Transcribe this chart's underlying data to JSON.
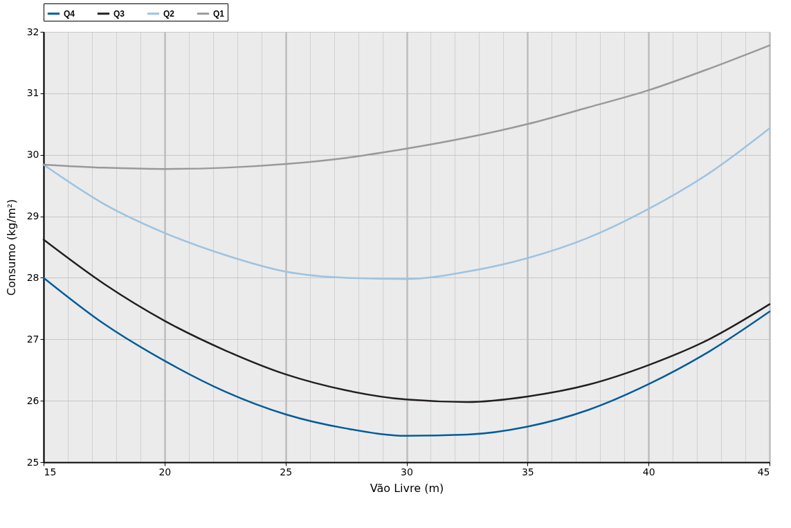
{
  "chart_data": {
    "type": "line",
    "xlabel": "Vão Livre (m)",
    "ylabel": "Consumo (kg/m²)",
    "x": [
      15,
      17.5,
      20,
      22.5,
      25,
      27.5,
      30,
      32.5,
      35,
      37.5,
      40,
      42.5,
      45
    ],
    "series": [
      {
        "name": "Q4",
        "color": "#005c9a",
        "values": [
          28.0,
          27.25,
          26.65,
          26.15,
          25.78,
          25.55,
          25.43,
          25.45,
          25.58,
          25.85,
          26.27,
          26.8,
          27.45
        ]
      },
      {
        "name": "Q3",
        "color": "#231f20",
        "values": [
          28.62,
          27.9,
          27.3,
          26.82,
          26.43,
          26.17,
          26.02,
          25.98,
          26.07,
          26.26,
          26.58,
          27.0,
          27.57
        ]
      },
      {
        "name": "Q2",
        "color": "#9dc3e0",
        "values": [
          29.84,
          29.2,
          28.73,
          28.37,
          28.1,
          28.0,
          27.98,
          28.1,
          28.32,
          28.65,
          29.12,
          29.7,
          30.43
        ]
      },
      {
        "name": "Q1",
        "color": "#999999",
        "values": [
          29.84,
          29.79,
          29.77,
          29.79,
          29.85,
          29.95,
          30.1,
          30.28,
          30.5,
          30.77,
          31.05,
          31.4,
          31.78
        ]
      }
    ],
    "xlim": [
      15,
      45
    ],
    "ylim": [
      25,
      32
    ],
    "xticks": [
      15,
      {
        "value": 16,
        "label": null
      },
      {
        "value": 17,
        "label": null
      },
      {
        "value": 18,
        "label": null
      },
      {
        "value": 19,
        "label": null
      },
      20,
      {
        "value": 21,
        "label": null
      },
      {
        "value": 22,
        "label": null
      },
      {
        "value": 23,
        "label": null
      },
      {
        "value": 24,
        "label": null
      },
      25,
      {
        "value": 26,
        "label": null
      },
      {
        "value": 27,
        "label": null
      },
      {
        "value": 28,
        "label": null
      },
      {
        "value": 29,
        "label": null
      },
      30,
      {
        "value": 31,
        "label": null
      },
      {
        "value": 32,
        "label": null
      },
      {
        "value": 33,
        "label": null
      },
      {
        "value": 34,
        "label": null
      },
      35,
      {
        "value": 36,
        "label": null
      },
      {
        "value": 37,
        "label": null
      },
      {
        "value": 38,
        "label": null
      },
      {
        "value": 39,
        "label": null
      },
      40,
      {
        "value": 41,
        "label": null
      },
      {
        "value": 42,
        "label": null
      },
      {
        "value": 43,
        "label": null
      },
      {
        "value": 44,
        "label": null
      },
      45
    ],
    "yticks": [
      25,
      26,
      27,
      28,
      29,
      30,
      31,
      32
    ],
    "grid": true,
    "legend": "top",
    "marker": "none",
    "line_style": "solid"
  }
}
